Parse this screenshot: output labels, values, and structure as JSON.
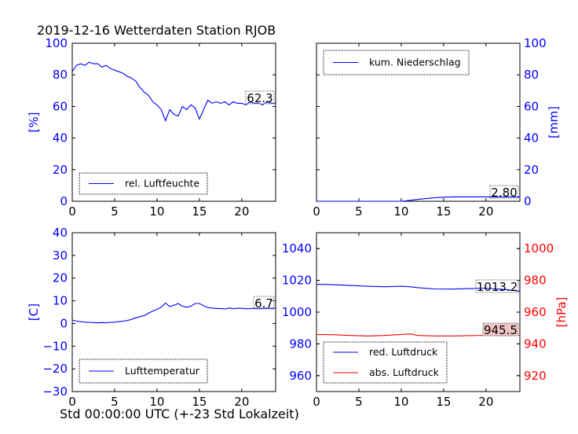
{
  "title": "2019-12-16 Wetterdaten Station RJOB",
  "xlabel": "Std 00:00:00 UTC (+-23 Std Lokalzeit)",
  "colors": {
    "blue": "#0000ff",
    "red": "#ff0000",
    "black": "#000000"
  },
  "chart_data": [
    {
      "type": "line",
      "panel": "top-left",
      "ylabel": "[%]",
      "xlim": [
        0,
        24
      ],
      "ylim": [
        0,
        100
      ],
      "x_ticks": [
        "0",
        "5",
        "10",
        "15",
        "20"
      ],
      "y_ticks": [
        "0",
        "20",
        "40",
        "60",
        "80",
        "100"
      ],
      "y_axis_side": "left",
      "y_tick_color": "blue",
      "legend": {
        "placement": "bottom-left",
        "entries": [
          "rel. Luftfeuchte"
        ]
      },
      "series": [
        {
          "name": "rel. Luftfeuchte",
          "color": "blue",
          "x": [
            0,
            0.5,
            1,
            1.5,
            2,
            2.5,
            3,
            3.5,
            4,
            4.5,
            5,
            5.5,
            6,
            6.5,
            7,
            7.5,
            8,
            8.5,
            9,
            9.5,
            10,
            10.5,
            11,
            11.5,
            12,
            12.5,
            13,
            13.5,
            14,
            14.5,
            15,
            15.5,
            16,
            16.5,
            17,
            17.5,
            18,
            18.5,
            19,
            19.5,
            20,
            20.5,
            21,
            21.5,
            22,
            22.5,
            23,
            23.5,
            24
          ],
          "y": [
            82,
            86,
            87,
            86,
            88,
            87,
            87,
            85,
            86,
            84,
            83,
            82,
            81,
            79,
            78,
            76,
            72,
            69,
            67,
            63,
            61,
            58,
            51,
            58,
            55,
            54,
            60,
            58,
            61,
            59,
            52,
            58,
            64,
            62,
            63,
            62,
            63,
            61,
            63,
            62,
            62,
            61,
            63,
            62,
            62,
            61,
            63,
            62,
            62
          ]
        }
      ],
      "annotations": [
        "62.3"
      ]
    },
    {
      "type": "line",
      "panel": "top-right",
      "ylabel": "[mm]",
      "xlim": [
        0,
        24
      ],
      "ylim": [
        0,
        100
      ],
      "x_ticks": [
        "0",
        "5",
        "10",
        "15",
        "20"
      ],
      "y_ticks": [
        "0",
        "20",
        "40",
        "60",
        "80",
        "100"
      ],
      "y_axis_side": "right",
      "y_tick_color": "blue",
      "legend": {
        "placement": "top-left",
        "entries": [
          "kum. Niederschlag"
        ]
      },
      "series": [
        {
          "name": "kum. Niederschlag",
          "color": "blue",
          "x": [
            0,
            2,
            4,
            6,
            8,
            10,
            10.5,
            11,
            12,
            13,
            14,
            15,
            16,
            18,
            20,
            22,
            24
          ],
          "y": [
            0,
            0,
            0,
            0,
            0,
            0,
            0.2,
            0.6,
            1.2,
            1.8,
            2.3,
            2.6,
            2.8,
            2.8,
            2.8,
            2.8,
            2.8
          ]
        }
      ],
      "annotations": [
        "2.80"
      ]
    },
    {
      "type": "line",
      "panel": "bottom-left",
      "ylabel": "[C]",
      "xlim": [
        0,
        24
      ],
      "ylim": [
        -30,
        40
      ],
      "x_ticks": [
        "0",
        "5",
        "10",
        "15",
        "20"
      ],
      "y_ticks": [
        "−30",
        "−20",
        "−10",
        "0",
        "10",
        "20",
        "30",
        "40"
      ],
      "y_axis_side": "left",
      "y_tick_color": "blue",
      "legend": {
        "placement": "bottom-left",
        "entries": [
          "Lufttemperatur"
        ]
      },
      "series": [
        {
          "name": "Lufttemperatur",
          "color": "blue",
          "x": [
            0,
            0.5,
            1,
            1.5,
            2,
            2.5,
            3,
            3.5,
            4,
            4.5,
            5,
            5.5,
            6,
            6.5,
            7,
            7.5,
            8,
            8.5,
            9,
            9.5,
            10,
            10.5,
            11,
            11.5,
            12,
            12.5,
            13,
            13.5,
            14,
            14.5,
            15,
            15.5,
            16,
            16.5,
            17,
            17.5,
            18,
            18.5,
            19,
            19.5,
            20,
            20.5,
            21,
            21.5,
            22,
            22.5,
            23,
            23.5,
            24
          ],
          "y": [
            1.5,
            1.0,
            0.8,
            0.6,
            0.5,
            0.4,
            0.3,
            0.4,
            0.3,
            0.5,
            0.6,
            0.8,
            1.0,
            1.3,
            1.8,
            2.5,
            3.0,
            3.5,
            4.5,
            5.5,
            6.2,
            7.2,
            9.0,
            7.5,
            8.0,
            8.8,
            7.6,
            7.2,
            7.6,
            8.8,
            8.8,
            7.8,
            7.0,
            6.8,
            6.6,
            6.6,
            6.4,
            6.8,
            6.5,
            6.7,
            6.7,
            6.5,
            6.6,
            6.7,
            6.6,
            6.7,
            6.7,
            6.7,
            6.7
          ]
        }
      ],
      "annotations": [
        "6.7"
      ]
    },
    {
      "type": "line",
      "panel": "bottom-right",
      "xlim": [
        0,
        24
      ],
      "ylim_left": [
        950,
        1050
      ],
      "ylim_right": [
        910,
        1010
      ],
      "ylabel_right": "[hPa]",
      "x_ticks": [
        "0",
        "5",
        "10",
        "15",
        "20"
      ],
      "y_ticks_left": [
        "960",
        "980",
        "1000",
        "1020",
        "1040"
      ],
      "y_ticks_right": [
        "920",
        "940",
        "960",
        "980",
        "1000"
      ],
      "y_tick_color_left": "blue",
      "y_tick_color_right": "red",
      "legend": {
        "placement": "bottom-left",
        "entries": [
          "red. Luftdruck",
          "abs. Luftdruck"
        ]
      },
      "series": [
        {
          "name": "red. Luftdruck",
          "color": "blue",
          "axis": "left",
          "x": [
            0,
            2,
            4,
            6,
            8,
            10,
            11,
            12,
            14,
            16,
            18,
            20,
            22,
            24
          ],
          "y": [
            1017.5,
            1017.3,
            1016.8,
            1016.3,
            1016.0,
            1016.3,
            1016.0,
            1015.4,
            1014.6,
            1014.5,
            1014.8,
            1015.1,
            1014.3,
            1013.2
          ]
        },
        {
          "name": "abs. Luftdruck",
          "color": "red",
          "axis": "right",
          "x": [
            0,
            2,
            4,
            6,
            8,
            10,
            11,
            12,
            14,
            16,
            18,
            20,
            22,
            24
          ],
          "y": [
            945.9,
            945.8,
            945.3,
            945.0,
            945.3,
            945.9,
            946.3,
            945.3,
            945.0,
            945.0,
            945.2,
            945.4,
            945.2,
            945.5
          ]
        }
      ],
      "annotations": [
        "1013.2",
        "945.5"
      ]
    }
  ]
}
